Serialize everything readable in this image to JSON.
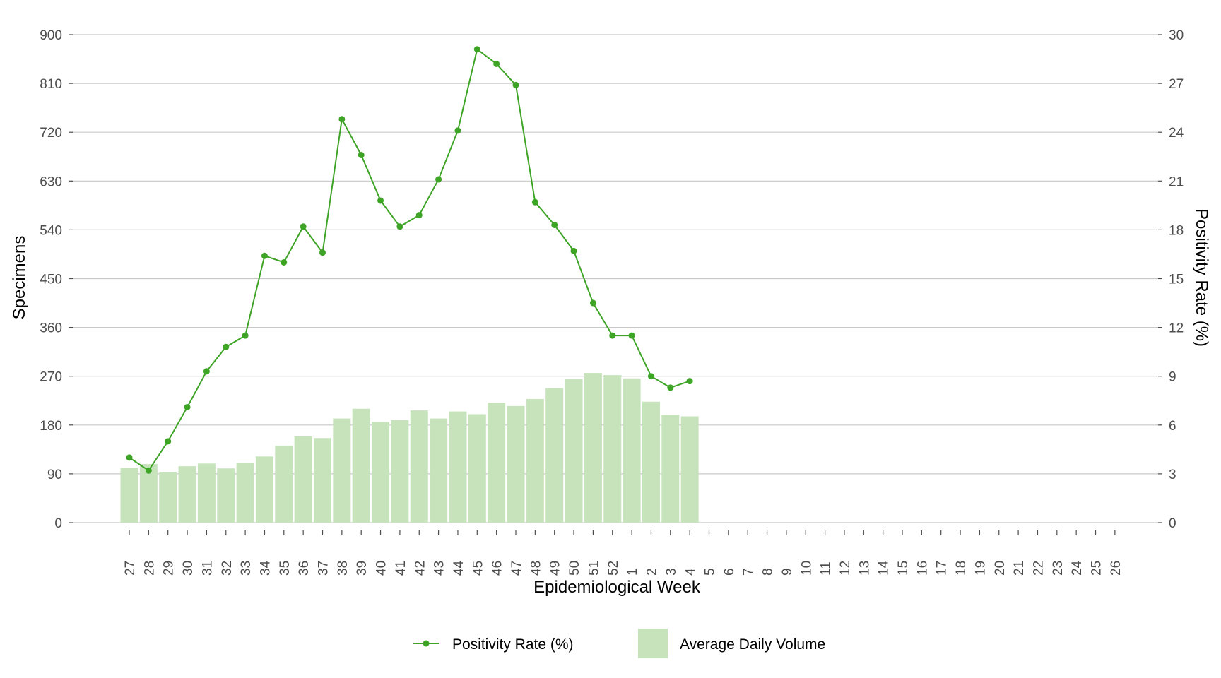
{
  "chart_data": {
    "type": "bar+line",
    "title": "",
    "xlabel": "Epidemiological Week",
    "ylabel": "Specimens",
    "y2label": "Positivity Rate (%)",
    "ylim": [
      0,
      900
    ],
    "y2lim": [
      0,
      30
    ],
    "yticks": [
      "0",
      "90",
      "180",
      "270",
      "360",
      "450",
      "540",
      "630",
      "720",
      "810",
      "900"
    ],
    "y2ticks": [
      "0",
      "3",
      "6",
      "9",
      "12",
      "15",
      "18",
      "21",
      "24",
      "27",
      "30"
    ],
    "grid": "horizontal major gridlines",
    "legend_position": "bottom",
    "categories": [
      "27",
      "28",
      "29",
      "30",
      "31",
      "32",
      "33",
      "34",
      "35",
      "36",
      "37",
      "38",
      "39",
      "40",
      "41",
      "42",
      "43",
      "44",
      "45",
      "46",
      "47",
      "48",
      "49",
      "50",
      "51",
      "52",
      "1",
      "2",
      "3",
      "4",
      "5",
      "6",
      "7",
      "8",
      "9",
      "10",
      "11",
      "12",
      "13",
      "14",
      "15",
      "16",
      "17",
      "18",
      "19",
      "20",
      "21",
      "22",
      "23",
      "24",
      "25",
      "26"
    ],
    "series": [
      {
        "name": "Average Daily Volume",
        "type": "bar",
        "axis": "left",
        "color": "#c7e3bb",
        "values": [
          101,
          108,
          93,
          104,
          109,
          100,
          110,
          122,
          142,
          159,
          156,
          192,
          210,
          186,
          189,
          207,
          192,
          205,
          200,
          221,
          215,
          228,
          248,
          265,
          276,
          272,
          266,
          223,
          199,
          196,
          null,
          null,
          null,
          null,
          null,
          null,
          null,
          null,
          null,
          null,
          null,
          null,
          null,
          null,
          null,
          null,
          null,
          null,
          null,
          null,
          null,
          null
        ]
      },
      {
        "name": "Positivity Rate (%)",
        "type": "line",
        "axis": "right",
        "color": "#3ea426",
        "values": [
          4.0,
          3.2,
          5.0,
          7.1,
          9.3,
          10.8,
          11.5,
          16.4,
          16.0,
          18.2,
          16.6,
          24.8,
          22.6,
          19.8,
          18.2,
          18.9,
          21.1,
          24.1,
          29.1,
          28.2,
          26.9,
          19.7,
          18.3,
          16.7,
          13.5,
          11.5,
          11.5,
          9.0,
          8.3,
          8.7,
          null,
          null,
          null,
          null,
          null,
          null,
          null,
          null,
          null,
          null,
          null,
          null,
          null,
          null,
          null,
          null,
          null,
          null,
          null,
          null,
          null,
          null
        ]
      }
    ]
  },
  "legend": {
    "line_label": "Positivity Rate (%)",
    "bar_label": "Average Daily Volume"
  },
  "colors": {
    "bar": "#c7e3bb",
    "line": "#3ea426",
    "grid": "#c8c8c8",
    "tick_text": "#4d4d4d"
  }
}
